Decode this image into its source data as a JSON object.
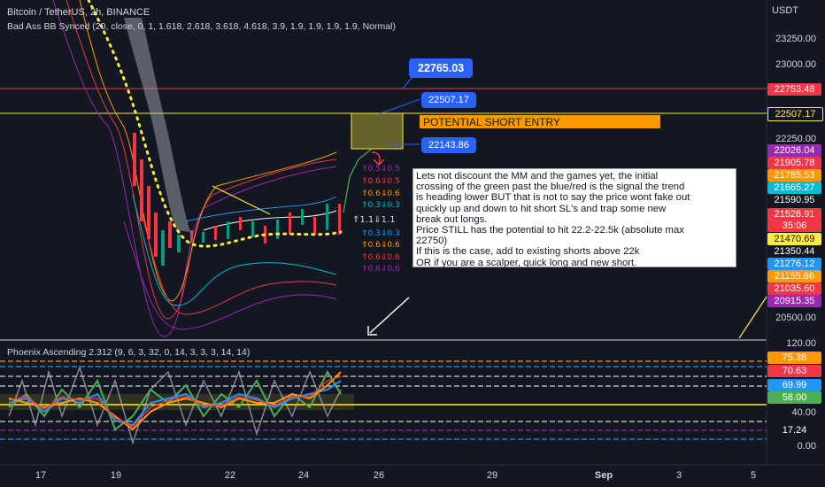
{
  "header": {
    "symbol_line": "Bitcoin / TetherUS, 2h, BINANCE",
    "indicator_line": "Bad Ass BB Synced (20, close, 0, 1, 1.618, 2.618, 3.618, 4.618, 3.9, 1.9, 1.9, 1.9, 1.9, Normal)",
    "currency": "USDT"
  },
  "price_axis": {
    "ticks": [
      "23250.00",
      "23000.00",
      "22250.00",
      "20500.00"
    ]
  },
  "price_tags": [
    {
      "label": "22753.48",
      "color": "#f23645"
    },
    {
      "label": "22507.17",
      "color": "#131722",
      "text_color": "#ffeb3b"
    },
    {
      "label": "22026.04",
      "color": "#9c27b0"
    },
    {
      "label": "21905.78",
      "color": "#f23645"
    },
    {
      "label": "21785.53",
      "color": "#ff9800"
    },
    {
      "label": "21665.27",
      "color": "#00bcd4"
    },
    {
      "label": "21590.95",
      "color": "#131722",
      "text_color": "#ffffff"
    },
    {
      "label": "21528.91",
      "color": "#f23645"
    },
    {
      "label": "35:06",
      "color": "#f23645"
    },
    {
      "label": "21470.69",
      "color": "#ffeb3b",
      "text_color": "#131722"
    },
    {
      "label": "21350.44",
      "color": "#131722",
      "text_color": "#ffffff"
    },
    {
      "label": "21276.12",
      "color": "#2196f3"
    },
    {
      "label": "21155.86",
      "color": "#ff9800"
    },
    {
      "label": "21035.60",
      "color": "#f23645"
    },
    {
      "label": "20915.35",
      "color": "#9c27b0"
    }
  ],
  "callouts": {
    "top": "22765.03",
    "mid": "22507.17",
    "low": "22143.86"
  },
  "short_entry_label": "POTENTIAL SHORT ENTRY",
  "note_lines": [
    "Lets not discount the MM and the games yet, the initial",
    "crossing of the green past the blue/red is the signal the trend",
    "is heading lower BUT that is not to say the price wont fake out",
    "quickly up and down to hit short SL's and trap some new",
    "break out longs.",
    "Price STILL has the potential to hit 22.2-22.5k (absolute max",
    "22750)",
    "If this is the case, add to existing shorts above 22k",
    "OR if you are a scalper, quick long and new short."
  ],
  "signal_labels": [
    {
      "text": "⇑0.5⇓0.5",
      "color": "#9c27b0"
    },
    {
      "text": "⇑0.6⇓0.5",
      "color": "#f23645"
    },
    {
      "text": "⇑0.6⇓0.6",
      "color": "#ff9800"
    },
    {
      "text": "⇑0.3⇓0.3",
      "color": "#00bcd4"
    },
    {
      "text": "⇑1.1⇓1.1",
      "color": "#d1d4dc"
    },
    {
      "text": "⇑0.3⇓0.3",
      "color": "#2196f3"
    },
    {
      "text": "⇑0.6⇓0.6",
      "color": "#ff9800"
    },
    {
      "text": "⇑0.6⇓0.6",
      "color": "#f23645"
    },
    {
      "text": "⇑0.6⇓0.6",
      "color": "#9c27b0"
    }
  ],
  "oscillator": {
    "title": "Phoenix Ascending 2.312 (9, 6, 3, 32, 0, 14, 3, 3, 3, 14, 14)",
    "axis_ticks": [
      "120.00",
      "40.00",
      "0.00"
    ],
    "tags": [
      {
        "label": "75.38",
        "color": "#ff9800"
      },
      {
        "label": "70.63",
        "color": "#f23645"
      },
      {
        "label": "69.99",
        "color": "#2196f3"
      },
      {
        "label": "58.00",
        "color": "#4caf50"
      },
      {
        "label": "17.24",
        "color": "#131722",
        "text_color": "#ffffff"
      }
    ]
  },
  "time_axis": [
    "17",
    "19",
    "22",
    "24",
    "26",
    "29",
    "Sep",
    "3",
    "5"
  ]
}
